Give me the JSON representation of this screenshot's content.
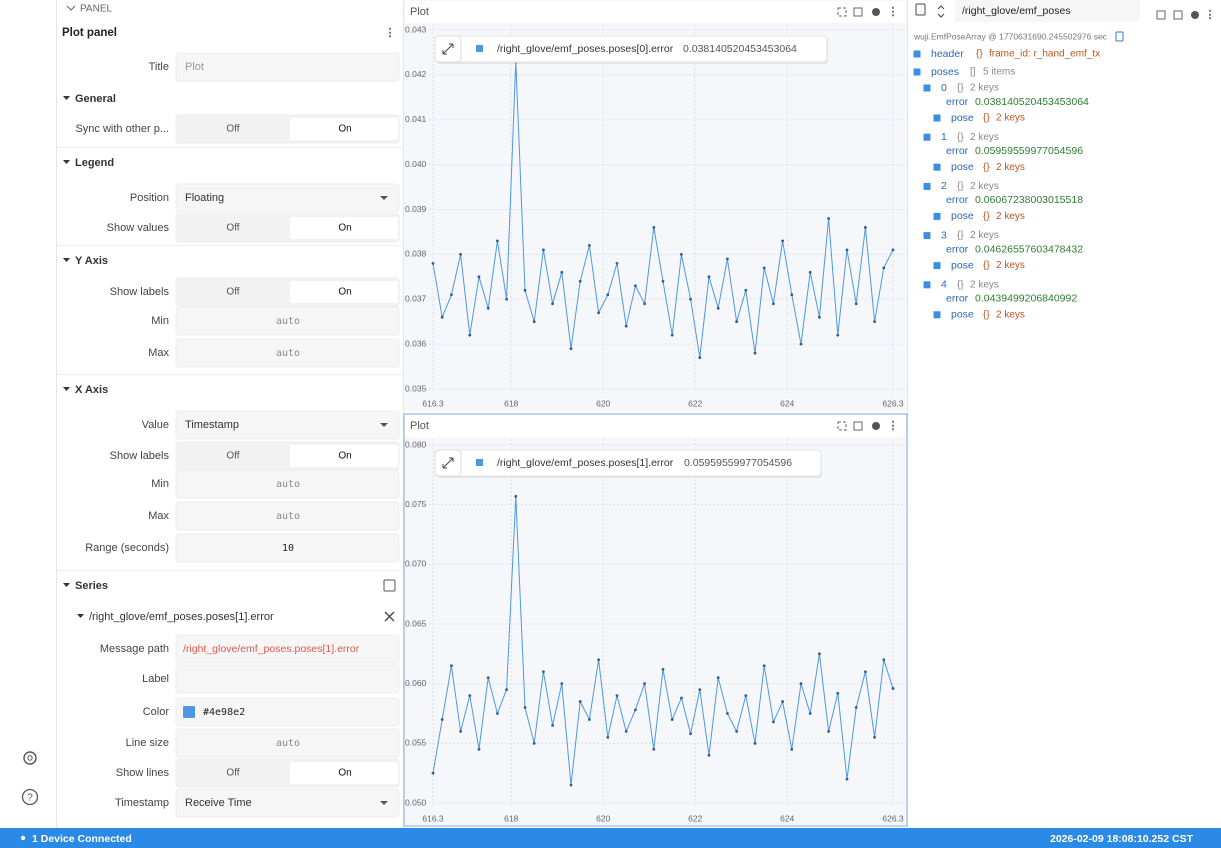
{
  "sidebar": {},
  "settings": {
    "section_label": "PANEL",
    "title": "Plot panel",
    "rows": [
      {
        "label": "Title",
        "placeholder": "Plot"
      },
      {
        "label": "General"
      },
      {
        "label": "Sync with other p...",
        "options": [
          "Off",
          "On"
        ]
      },
      {
        "label": "Legend"
      },
      {
        "label": "Position",
        "value": "Floating"
      },
      {
        "label": "Show values",
        "options": [
          "Off",
          "On"
        ]
      },
      {
        "label": "Y Axis"
      },
      {
        "label": "Show labels",
        "options": [
          "Off",
          "On"
        ]
      },
      {
        "label": "Min",
        "value": "auto"
      },
      {
        "label": "Max",
        "value": "auto"
      },
      {
        "label": "X Axis"
      },
      {
        "label": "Value",
        "value": "Timestamp"
      },
      {
        "label": "Show labels",
        "options": [
          "Off",
          "On"
        ]
      },
      {
        "label": "Min",
        "value": "auto"
      },
      {
        "label": "Max",
        "value": "auto"
      },
      {
        "label": "Range (seconds)",
        "value": "10"
      },
      {
        "label": "Series"
      },
      {
        "label": "/right_glove/emf_poses.poses[1].error"
      },
      {
        "label": "Message path",
        "value": "/right_glove/emf_poses.poses[1].error"
      },
      {
        "label": "Label"
      },
      {
        "label": "Color",
        "value": "#4e98e2"
      },
      {
        "label": "Line size",
        "value": "auto"
      },
      {
        "label": "Show lines",
        "options": [
          "Off",
          "On"
        ]
      },
      {
        "label": "Timestamp",
        "value": "Receive Time"
      }
    ]
  },
  "chart_data": [
    {
      "type": "line",
      "title": "Plot",
      "legend_value": "0.038140520453453064",
      "x": [
        616.3,
        616.5,
        616.7,
        616.9,
        617.1,
        617.3,
        617.5,
        617.7,
        617.9,
        618.1,
        618.3,
        618.5,
        618.7,
        618.9,
        619.1,
        619.3,
        619.5,
        619.7,
        619.9,
        620.1,
        620.3,
        620.5,
        620.7,
        620.9,
        621.1,
        621.3,
        621.5,
        621.7,
        621.9,
        622.1,
        622.3,
        622.5,
        622.7,
        622.9,
        623.1,
        623.3,
        623.5,
        623.7,
        623.9,
        624.1,
        624.3,
        624.5,
        624.7,
        624.9,
        625.1,
        625.3,
        625.5,
        625.7,
        625.9,
        626.1,
        626.3
      ],
      "series": [
        {
          "name": "/right_glove/emf_poses.poses[0].error",
          "color": "#4e98e2",
          "values": [
            0.0378,
            0.0366,
            0.0371,
            0.038,
            0.0362,
            0.0375,
            0.0368,
            0.0383,
            0.037,
            0.0423,
            0.0372,
            0.0365,
            0.0381,
            0.0369,
            0.0376,
            0.0359,
            0.0374,
            0.0382,
            0.0367,
            0.0371,
            0.0378,
            0.0364,
            0.0373,
            0.0369,
            0.0386,
            0.0374,
            0.0362,
            0.038,
            0.037,
            0.0357,
            0.0375,
            0.0368,
            0.0379,
            0.0365,
            0.0372,
            0.0358,
            0.0377,
            0.0369,
            0.0383,
            0.0371,
            0.036,
            0.0376,
            0.0366,
            0.0388,
            0.0362,
            0.0381,
            0.0369,
            0.0386,
            0.0365,
            0.0377,
            0.0381
          ]
        }
      ],
      "xlim": [
        616.3,
        626.3
      ],
      "xticks": [
        616.3,
        618,
        620,
        622,
        624,
        626.3
      ],
      "ylim": [
        0.035,
        0.043
      ],
      "yticks": [
        0.035,
        0.036,
        0.037,
        0.038,
        0.039,
        {
          "value": 0.04,
          "label": "0.040"
        },
        0.041,
        0.042,
        0.043
      ],
      "grid": true
    },
    {
      "type": "line",
      "title": "Plot",
      "legend_value": "0.05959559977054596",
      "x": [
        616.3,
        616.5,
        616.7,
        616.9,
        617.1,
        617.3,
        617.5,
        617.7,
        617.9,
        618.1,
        618.3,
        618.5,
        618.7,
        618.9,
        619.1,
        619.3,
        619.5,
        619.7,
        619.9,
        620.1,
        620.3,
        620.5,
        620.7,
        620.9,
        621.1,
        621.3,
        621.5,
        621.7,
        621.9,
        622.1,
        622.3,
        622.5,
        622.7,
        622.9,
        623.1,
        623.3,
        623.5,
        623.7,
        623.9,
        624.1,
        624.3,
        624.5,
        624.7,
        624.9,
        625.1,
        625.3,
        625.5,
        625.7,
        625.9,
        626.1,
        626.3
      ],
      "series": [
        {
          "name": "/right_glove/emf_poses.poses[1].error",
          "color": "#4e98e2",
          "values": [
            0.0525,
            0.057,
            0.0615,
            0.056,
            0.059,
            0.0545,
            0.0605,
            0.0575,
            0.0595,
            0.0757,
            0.058,
            0.055,
            0.061,
            0.0565,
            0.06,
            0.0515,
            0.0585,
            0.057,
            0.062,
            0.0555,
            0.059,
            0.056,
            0.0578,
            0.06,
            0.0545,
            0.0612,
            0.057,
            0.0588,
            0.0558,
            0.0595,
            0.054,
            0.0605,
            0.0575,
            0.056,
            0.059,
            0.055,
            0.0615,
            0.0568,
            0.0585,
            0.0545,
            0.06,
            0.0575,
            0.0625,
            0.056,
            0.0592,
            0.052,
            0.058,
            0.061,
            0.0555,
            0.062,
            0.0596
          ]
        }
      ],
      "xlim": [
        616.3,
        626.3
      ],
      "xticks": [
        616.3,
        618,
        620,
        622,
        624,
        626.3
      ],
      "ylim": [
        0.05,
        0.08
      ],
      "yticks": [
        {
          "value": 0.05,
          "label": "0.050"
        },
        0.055,
        {
          "value": 0.06,
          "label": "0.060"
        },
        0.065,
        {
          "value": 0.07,
          "label": "0.070"
        },
        0.075,
        {
          "value": 0.08,
          "label": "0.080"
        }
      ],
      "grid": true
    }
  ],
  "raw_messages": {
    "topic": "/right_glove/emf_poses",
    "schema": "wuji.EmfPoseArray @ 1770631690.245502976 sec",
    "header": {
      "key": "header",
      "braces": "{}",
      "summary": "frame_id: r_hand_emf_tx"
    },
    "poses": {
      "key": "poses",
      "brackets": "[]",
      "summary": "5 items",
      "items": [
        {
          "index": "0",
          "braces": "{}",
          "summary": "2 keys",
          "error_key": "error",
          "error": "0.038140520453453064",
          "pose_key": "pose",
          "pose_braces": "{}",
          "pose_summary": "2 keys"
        },
        {
          "index": "1",
          "braces": "{}",
          "summary": "2 keys",
          "error_key": "error",
          "error": "0.05959559977054596",
          "pose_key": "pose",
          "pose_braces": "{}",
          "pose_summary": "2 keys"
        },
        {
          "index": "2",
          "braces": "{}",
          "summary": "2 keys",
          "error_key": "error",
          "error": "0.06067238003015518",
          "pose_key": "pose",
          "pose_braces": "{}",
          "pose_summary": "2 keys"
        },
        {
          "index": "3",
          "braces": "{}",
          "summary": "2 keys",
          "error_key": "error",
          "error": "0.04626557603478432",
          "pose_key": "pose",
          "pose_braces": "{}",
          "pose_summary": "2 keys"
        },
        {
          "index": "4",
          "braces": "{}",
          "summary": "2 keys",
          "error_key": "error",
          "error": "0.0439499206840992",
          "pose_key": "pose",
          "pose_braces": "{}",
          "pose_summary": "2 keys"
        }
      ]
    }
  },
  "status_bar": {
    "devices": "1 Device Connected",
    "time": "2026-02-09 18:08:10.252 CST"
  }
}
